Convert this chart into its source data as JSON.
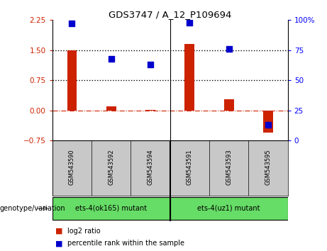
{
  "title": "GDS3747 / A_12_P109694",
  "samples": [
    "GSM543590",
    "GSM543592",
    "GSM543594",
    "GSM543591",
    "GSM543593",
    "GSM543595"
  ],
  "log2_ratio": [
    1.5,
    0.1,
    0.02,
    1.65,
    0.28,
    -0.55
  ],
  "percentile_rank": [
    97,
    68,
    63,
    98,
    76,
    13
  ],
  "groups": [
    {
      "label": "ets-4(ok165) mutant",
      "indices": [
        0,
        1,
        2
      ]
    },
    {
      "label": "ets-4(uz1) mutant",
      "indices": [
        3,
        4,
        5
      ]
    }
  ],
  "ylim_left": [
    -0.75,
    2.25
  ],
  "ylim_right": [
    0,
    100
  ],
  "hlines": [
    1.5,
    0.75
  ],
  "bar_color": "#cc2200",
  "dot_color": "#0000cc",
  "zero_line_color": "#cc2200",
  "sample_box_color": "#c8c8c8",
  "group_box_color": "#66dd66",
  "left_yticks": [
    -0.75,
    0,
    0.75,
    1.5,
    2.25
  ],
  "right_yticks": [
    0,
    25,
    50,
    75,
    100
  ],
  "right_ytick_labels": [
    "0",
    "25",
    "50",
    "75",
    "100%"
  ],
  "bar_width": 0.25,
  "dot_size": 28
}
